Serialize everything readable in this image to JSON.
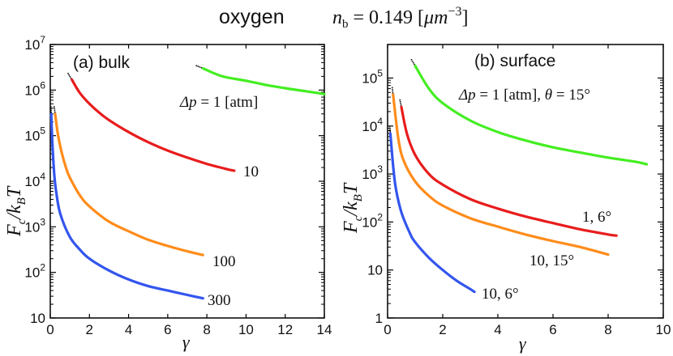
{
  "figure": {
    "title_gas": "oxygen",
    "title_density": "n_b = 0.149 [μm^-3]"
  },
  "chart_data": [
    {
      "type": "line",
      "panel_label": "(a) bulk",
      "xlabel": "γ",
      "ylabel": "F_c/k_B T",
      "xscale": "linear",
      "yscale": "log",
      "xlim": [
        0,
        14
      ],
      "ylim": [
        10,
        10000000
      ],
      "x_ticks": [
        0,
        2,
        4,
        6,
        8,
        10,
        12,
        14
      ],
      "y_ticks": [
        10,
        100,
        1000,
        10000,
        100000,
        1000000,
        10000000
      ],
      "y_tick_labels": [
        "10",
        "10^2",
        "10^3",
        "10^4",
        "10^5",
        "10^6",
        "10^7"
      ],
      "annotation": "Δp = 1 [atm]",
      "series": [
        {
          "name": "1",
          "label": "",
          "color": "#44ee22",
          "points": [
            [
              7.8,
              3000000
            ],
            [
              8.8,
              2000000
            ],
            [
              10,
              1600000
            ],
            [
              11,
              1300000
            ],
            [
              12,
              1100000
            ],
            [
              13,
              950000
            ],
            [
              14,
              820000
            ]
          ]
        },
        {
          "name": "10",
          "label": "10",
          "color": "#e81c1c",
          "points": [
            [
              1.1,
              1700000
            ],
            [
              1.5,
              880000
            ],
            [
              2,
              500000
            ],
            [
              2.5,
              320000
            ],
            [
              3,
              220000
            ],
            [
              4,
              120000
            ],
            [
              5,
              72000
            ],
            [
              6,
              47000
            ],
            [
              7,
              33000
            ],
            [
              8,
              24000
            ],
            [
              9,
              18500
            ],
            [
              9.4,
              17000
            ]
          ]
        },
        {
          "name": "100",
          "label": "100",
          "color": "#ff8c1a",
          "points": [
            [
              0.25,
              300000
            ],
            [
              0.4,
              100000
            ],
            [
              0.6,
              40000
            ],
            [
              0.8,
              20000
            ],
            [
              1,
              12000
            ],
            [
              1.5,
              5000
            ],
            [
              2,
              2800
            ],
            [
              3,
              1300
            ],
            [
              4,
              800
            ],
            [
              5,
              520
            ],
            [
              6,
              380
            ],
            [
              7,
              290
            ],
            [
              7.8,
              240
            ]
          ]
        },
        {
          "name": "300",
          "label": "300",
          "color": "#3355ee",
          "points": [
            [
              0.05,
              300000
            ],
            [
              0.1,
              80000
            ],
            [
              0.2,
              15000
            ],
            [
              0.3,
              6000
            ],
            [
              0.5,
              2000
            ],
            [
              1,
              600
            ],
            [
              1.5,
              320
            ],
            [
              2,
              200
            ],
            [
              3,
              110
            ],
            [
              4,
              70
            ],
            [
              5,
              50
            ],
            [
              6,
              40
            ],
            [
              7,
              32
            ],
            [
              7.8,
              27
            ]
          ]
        }
      ]
    },
    {
      "type": "line",
      "panel_label": "(b) surface",
      "xlabel": "γ",
      "ylabel": "F_c/k_B T",
      "xscale": "linear",
      "yscale": "log",
      "xlim": [
        0,
        10
      ],
      "ylim": [
        1,
        500000
      ],
      "x_ticks": [
        0,
        2,
        4,
        6,
        8,
        10
      ],
      "y_ticks": [
        1,
        10,
        100,
        1000,
        10000,
        100000
      ],
      "y_tick_labels": [
        "1",
        "10",
        "10^2",
        "10^3",
        "10^4",
        "10^5"
      ],
      "annotation": "Δp = 1 [atm],  θ = 15°",
      "series": [
        {
          "name": "1, 15°",
          "label": "",
          "color": "#44ee22",
          "points": [
            [
              1,
              180000
            ],
            [
              1.5,
              60000
            ],
            [
              2,
              30000
            ],
            [
              3,
              13000
            ],
            [
              4,
              7500
            ],
            [
              5,
              5000
            ],
            [
              6,
              3600
            ],
            [
              7,
              2800
            ],
            [
              8,
              2200
            ],
            [
              9,
              1800
            ],
            [
              9.4,
              1600
            ]
          ]
        },
        {
          "name": "1, 6°",
          "label": "1,  6°",
          "color": "#e81c1c",
          "points": [
            [
              0.5,
              25000
            ],
            [
              0.7,
              7000
            ],
            [
              1,
              2500
            ],
            [
              1.5,
              1000
            ],
            [
              2,
              600
            ],
            [
              3,
              300
            ],
            [
              4,
              190
            ],
            [
              5,
              130
            ],
            [
              6,
              95
            ],
            [
              7,
              70
            ],
            [
              8,
              55
            ],
            [
              8.3,
              52
            ]
          ]
        },
        {
          "name": "10, 15°",
          "label": "10,  15°",
          "color": "#ff8c1a",
          "points": [
            [
              0.2,
              45000
            ],
            [
              0.4,
              5000
            ],
            [
              0.6,
              1800
            ],
            [
              1,
              700
            ],
            [
              1.5,
              350
            ],
            [
              2,
              220
            ],
            [
              3,
              120
            ],
            [
              4,
              80
            ],
            [
              5,
              55
            ],
            [
              6,
              40
            ],
            [
              7,
              30
            ],
            [
              8,
              21
            ]
          ]
        },
        {
          "name": "10, 6°",
          "label": "10,  6°",
          "color": "#3355ee",
          "points": [
            [
              0.1,
              7000
            ],
            [
              0.2,
              1500
            ],
            [
              0.3,
              500
            ],
            [
              0.5,
              160
            ],
            [
              0.8,
              60
            ],
            [
              1,
              38
            ],
            [
              1.5,
              18
            ],
            [
              2,
              10
            ],
            [
              2.5,
              6
            ],
            [
              3,
              4
            ],
            [
              3.15,
              3.5
            ]
          ]
        }
      ]
    }
  ]
}
